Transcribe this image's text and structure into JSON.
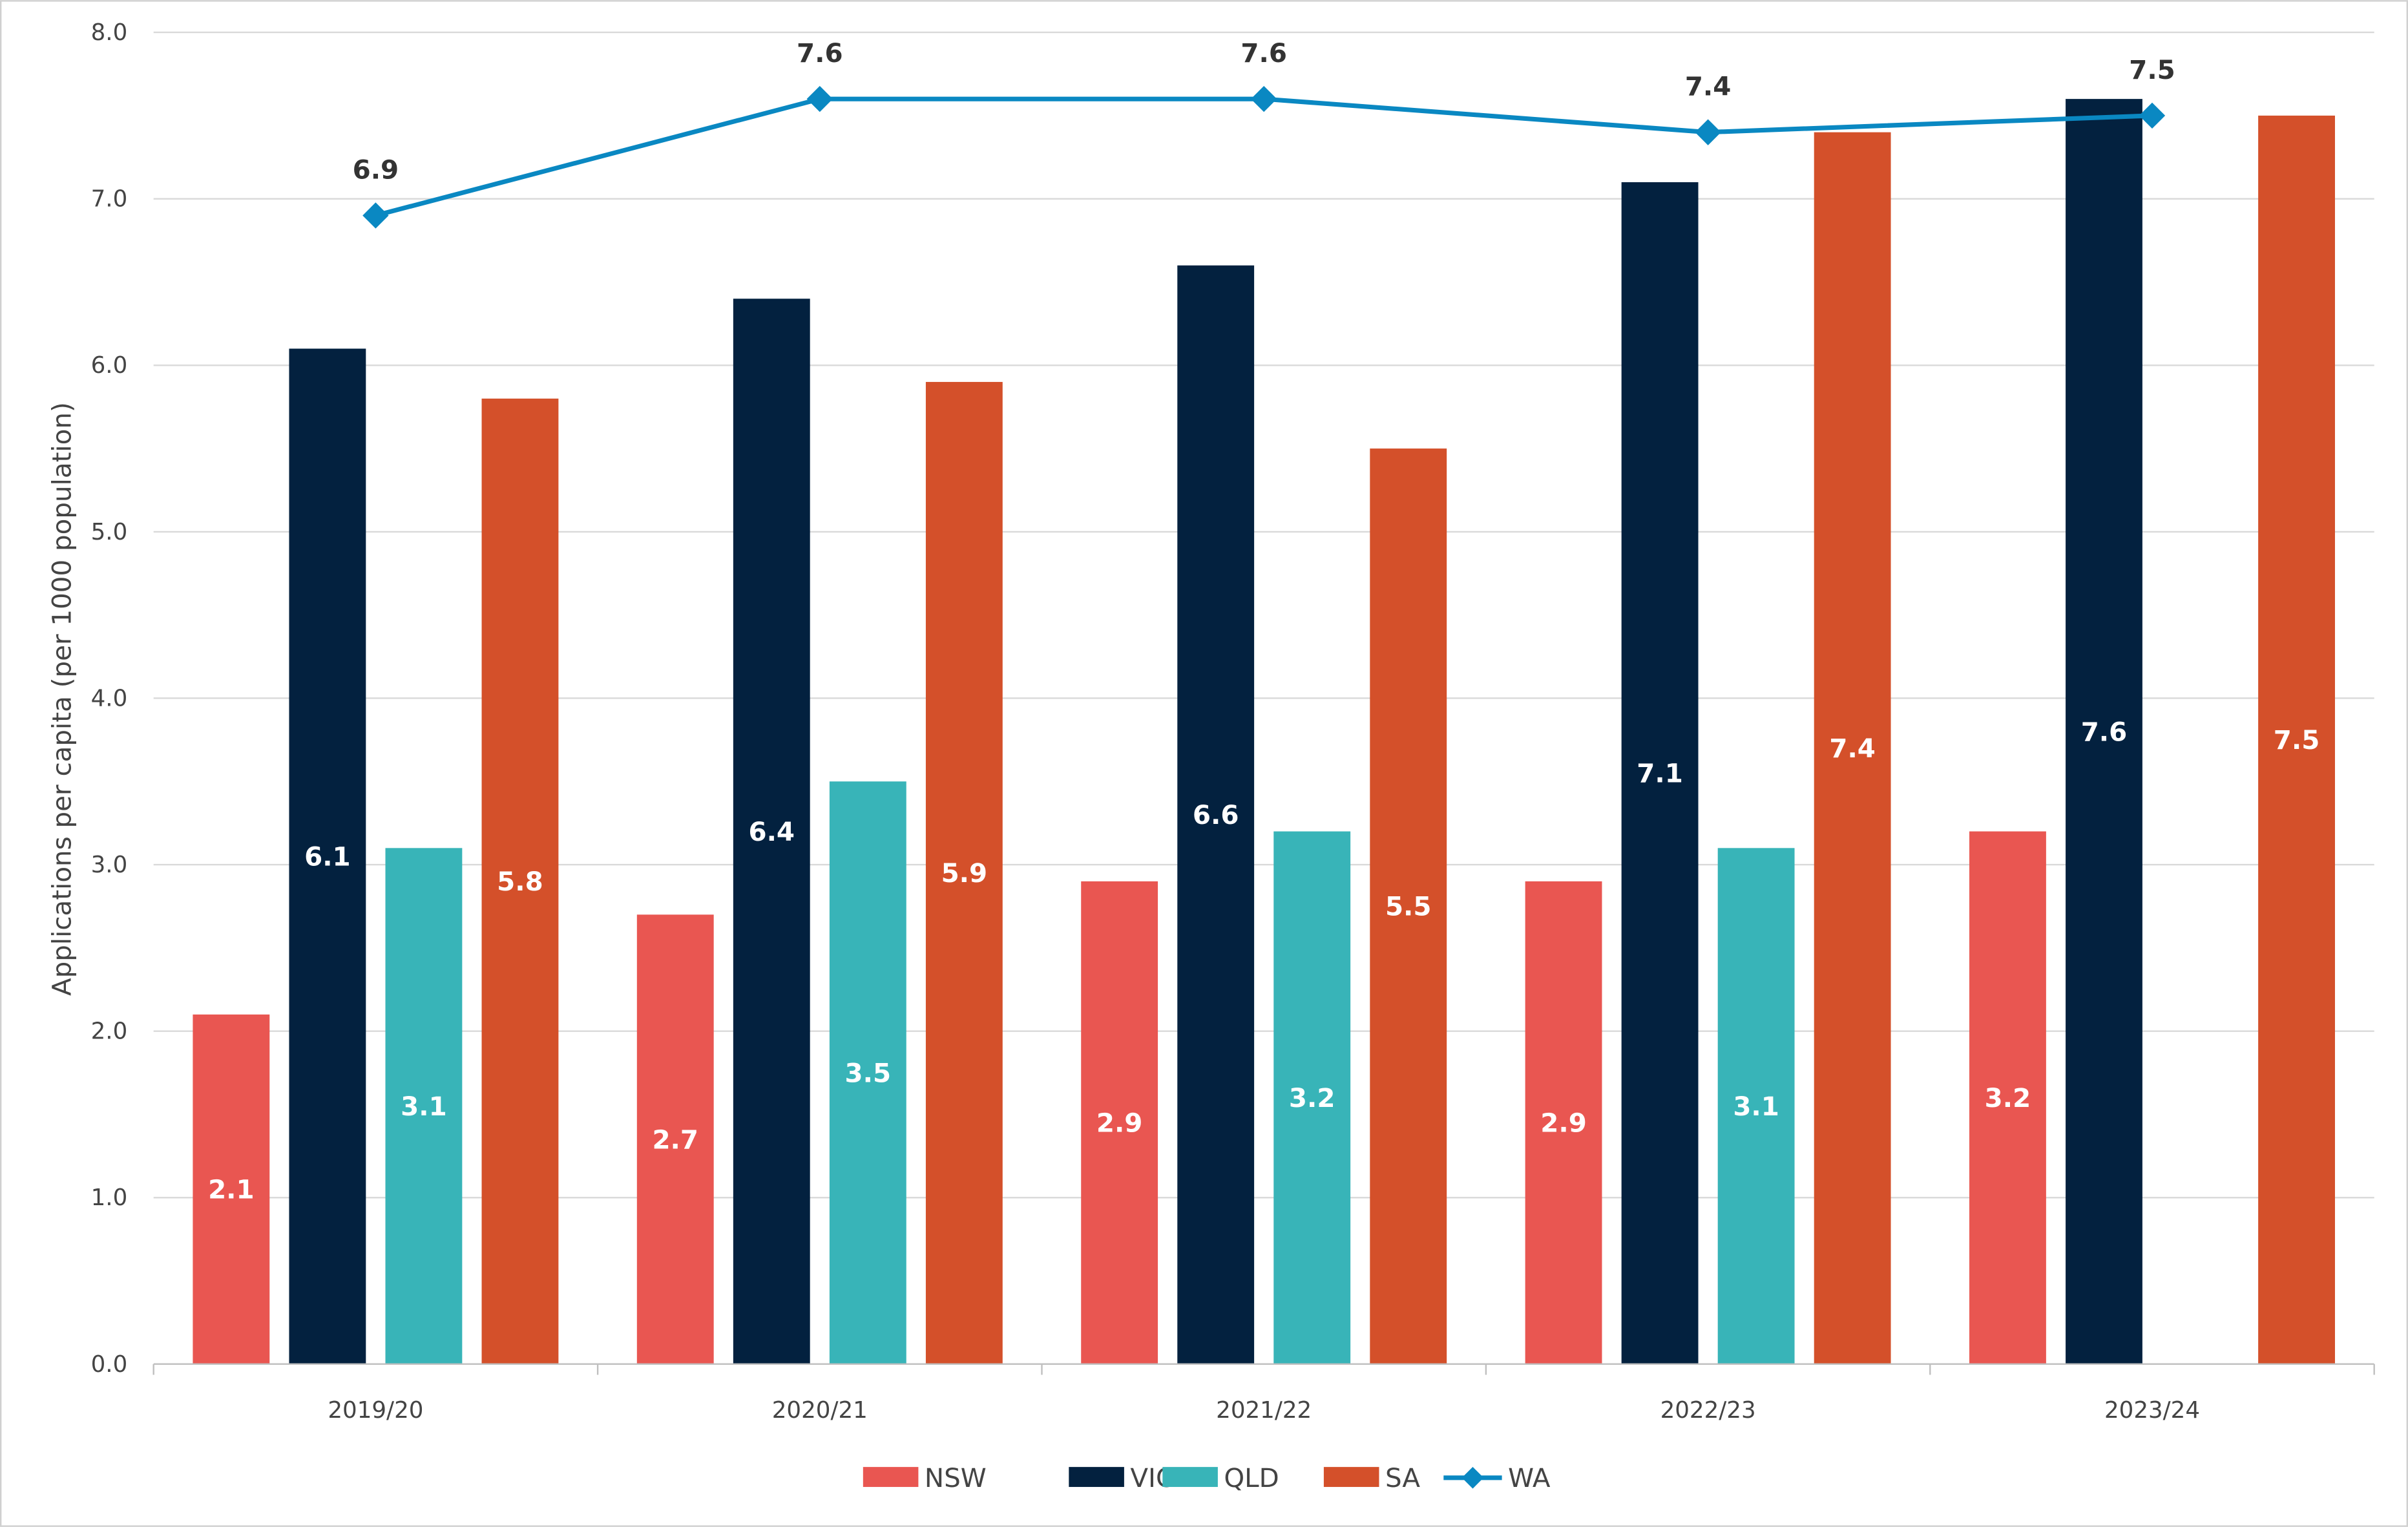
{
  "chart_data": {
    "type": "bar",
    "title": "",
    "xlabel": "",
    "ylabel": "Applications per capita (per 1000 population)",
    "ylim": [
      0,
      8
    ],
    "yticks": [
      "0.0",
      "1.0",
      "2.0",
      "3.0",
      "4.0",
      "5.0",
      "6.0",
      "7.0",
      "8.0"
    ],
    "grid": true,
    "legend_position": "bottom",
    "categories": [
      "2019/20",
      "2020/21",
      "2021/22",
      "2022/23",
      "2023/24"
    ],
    "series": [
      {
        "name": "NSW",
        "kind": "bar",
        "color": "#E95651",
        "values": [
          2.1,
          2.7,
          2.9,
          2.9,
          3.2
        ],
        "labels": [
          "2.1",
          "2.7",
          "2.9",
          "2.9",
          "3.2"
        ]
      },
      {
        "name": "VIC",
        "kind": "bar",
        "color": "#03213F",
        "values": [
          6.1,
          6.4,
          6.6,
          7.1,
          7.6
        ],
        "labels": [
          "6.1",
          "6.4",
          "6.6",
          "7.1",
          "7.6"
        ]
      },
      {
        "name": "QLD",
        "kind": "bar",
        "color": "#38B4B8",
        "values": [
          3.1,
          3.5,
          3.2,
          3.1,
          null
        ],
        "labels": [
          "3.1",
          "3.5",
          "3.2",
          "3.1",
          null
        ]
      },
      {
        "name": "SA",
        "kind": "bar",
        "color": "#D4502A",
        "values": [
          5.8,
          5.9,
          5.5,
          7.4,
          7.5
        ],
        "labels": [
          "5.8",
          "5.9",
          "5.5",
          "7.4",
          "7.5"
        ]
      },
      {
        "name": "WA",
        "kind": "line",
        "color": "#0A88C2",
        "values": [
          6.9,
          7.6,
          7.6,
          7.4,
          7.5
        ],
        "labels": [
          "6.9",
          "7.6",
          "7.6",
          "7.4",
          "7.5"
        ]
      }
    ]
  }
}
